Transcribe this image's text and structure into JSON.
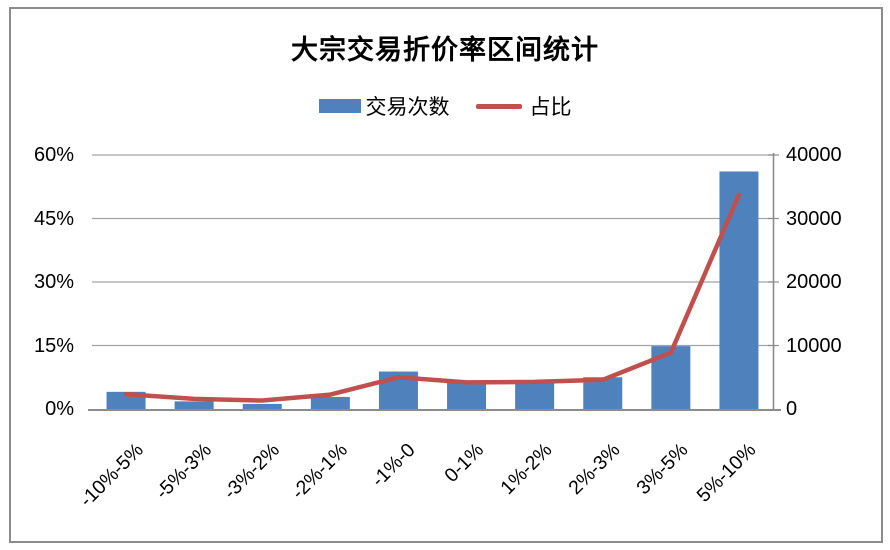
{
  "frame": {
    "border_color": "#8c8c8c",
    "background": "#ffffff"
  },
  "chart_data": {
    "type": "combo-bar-line",
    "title": "大宗交易折价率区间统计",
    "categories": [
      "-10%-5%",
      "-5%-3%",
      "-3%-2%",
      "-2%-1%",
      "-1%-0",
      "0-1%",
      "1%-2%",
      "2%-3%",
      "3%-5%",
      "5%-10%"
    ],
    "series": [
      {
        "name": "交易次数",
        "type": "bar",
        "axis": "right",
        "color": "#4F81BD",
        "values": [
          2700,
          1200,
          800,
          1900,
          5900,
          4100,
          4050,
          5000,
          9900,
          37400
        ]
      },
      {
        "name": "占比",
        "type": "line",
        "axis": "left",
        "color": "#C0504D",
        "unit": "%",
        "values": [
          3.5,
          2.4,
          2.0,
          3.4,
          7.5,
          6.3,
          6.4,
          6.9,
          13.3,
          50.6
        ]
      }
    ],
    "left_axis": {
      "min": 0,
      "max": 60,
      "unit": "%",
      "ticks": [
        "60%",
        "45%",
        "30%",
        "15%",
        "0%"
      ]
    },
    "right_axis": {
      "min": 0,
      "max": 40000,
      "ticks": [
        "40000",
        "30000",
        "20000",
        "10000",
        "0"
      ]
    },
    "grid": true,
    "legend_position": "top-center",
    "gridline_color": "#a3a3a3",
    "axis_line_color": "#8c8c8c"
  }
}
